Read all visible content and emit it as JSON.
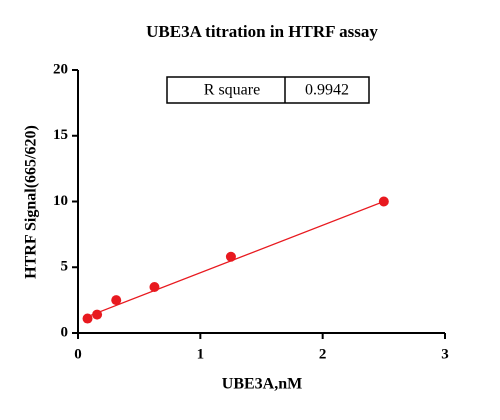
{
  "chart_data": {
    "type": "scatter",
    "title": "UBE3A titration in HTRF assay",
    "x_label": "UBE3A,nM",
    "y_label": "HTRF Signal(665/620)",
    "x": [
      0.078,
      0.156,
      0.3125,
      0.625,
      1.25,
      2.5
    ],
    "y": [
      1.1,
      1.4,
      2.5,
      3.5,
      5.8,
      10.0
    ],
    "color": "#e8191f",
    "fit_line": {
      "x": [
        0.078,
        2.5
      ],
      "y": [
        1.25,
        10.0
      ],
      "color": "#e8191f"
    },
    "xlim": [
      0,
      3
    ],
    "xticks": [
      0,
      1,
      2,
      3
    ],
    "ylim": [
      0,
      20
    ],
    "yticks": [
      0,
      5,
      10,
      15,
      20
    ],
    "annotation": {
      "label": "R square",
      "value": 0.9942
    }
  }
}
